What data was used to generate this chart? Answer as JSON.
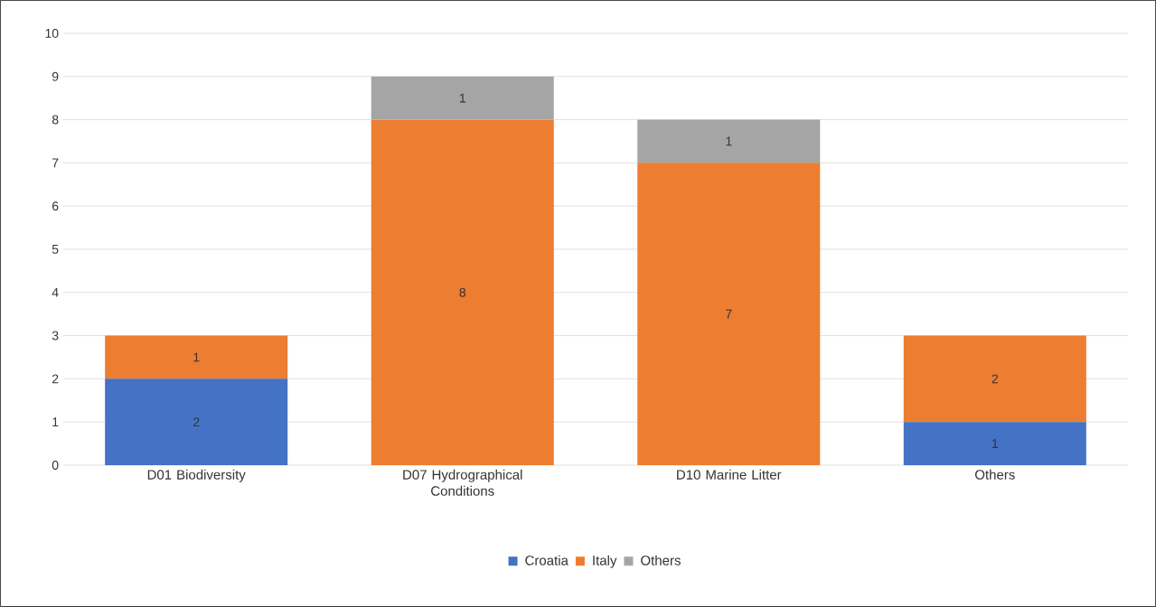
{
  "chart_data": {
    "type": "bar",
    "stacked": true,
    "categories": [
      "D01 Biodiversity",
      "D07 Hydrographical Conditions",
      "D10 Marine Litter",
      "Others"
    ],
    "series": [
      {
        "name": "Croatia",
        "color": "#4472c4",
        "values": [
          2,
          0,
          0,
          1
        ],
        "value_labels": [
          "2",
          null,
          null,
          "1"
        ]
      },
      {
        "name": "Italy",
        "color": "#ed7d31",
        "values": [
          1,
          8,
          7,
          2
        ],
        "value_labels": [
          "1",
          "8",
          "7",
          "2"
        ]
      },
      {
        "name": "Others",
        "color": "#a5a5a5",
        "values": [
          0,
          1,
          1,
          0
        ],
        "value_labels": [
          null,
          "1",
          "1",
          null
        ]
      }
    ],
    "ylim": [
      0,
      10
    ],
    "yticks": [
      0,
      1,
      2,
      3,
      4,
      5,
      6,
      7,
      8,
      9,
      10
    ],
    "grid": "y",
    "legend": "bottom"
  }
}
